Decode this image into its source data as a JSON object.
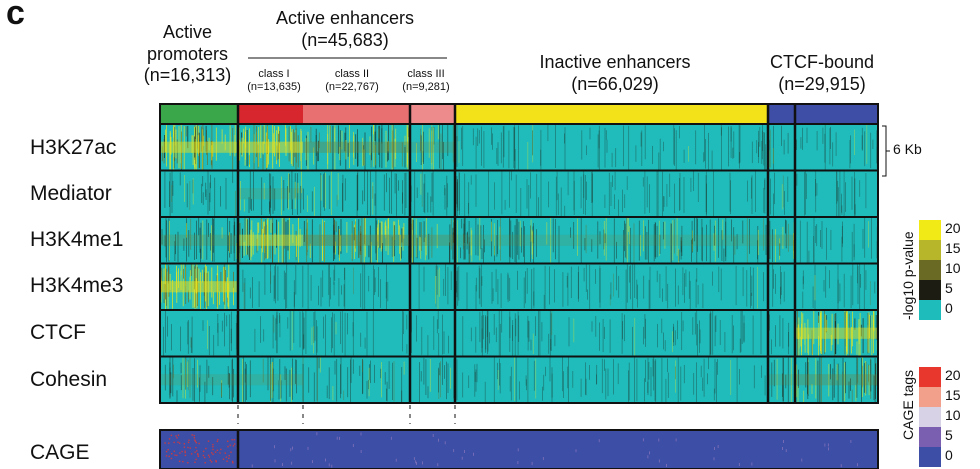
{
  "figure": {
    "panel_letter": "c",
    "groups": [
      {
        "id": "active-promoters",
        "line1": "Active",
        "line2": "promoters",
        "count": "(n=16,313)",
        "color": "#3aa84a"
      },
      {
        "id": "active-enhancers",
        "line1": "Active enhancers",
        "count": "(n=45,683)",
        "classes": [
          {
            "label": "class I",
            "count": "(n=13,635)",
            "color": "#d8262e"
          },
          {
            "label": "class II",
            "count": "(n=22,767)",
            "color": "#e87070"
          },
          {
            "label": "class III",
            "count": "(n=9,281)",
            "color": "#ec8a8c"
          }
        ]
      },
      {
        "id": "inactive-enhancers",
        "line1": "Inactive enhancers",
        "count": "(n=66,029)",
        "color": "#f3e21a"
      },
      {
        "id": "ctcf-bound",
        "line1": "CTCF-bound",
        "count": "(n=29,915)",
        "color": "#3e4ea6"
      }
    ],
    "tracks": [
      "H3K27ac",
      "Mediator",
      "H3K4me1",
      "H3K4me3",
      "CTCF",
      "Cohesin"
    ],
    "cage_track": "CAGE",
    "window_label": "6 Kb",
    "pvalue_scale": {
      "title": "-log10 p-value",
      "ticks": [
        "20",
        "15",
        "10",
        "5",
        "0"
      ],
      "colors": [
        "#f2ea17",
        "#b7b62a",
        "#6a6a24",
        "#1c1c12",
        "#1fbcbc"
      ]
    },
    "cage_scale": {
      "title": "CAGE tags",
      "ticks": [
        "20",
        "15",
        "10",
        "5",
        "0"
      ],
      "colors": [
        "#e8372c",
        "#f2a08c",
        "#d8d2e6",
        "#7a5fb0",
        "#3c4ea6"
      ]
    }
  }
}
